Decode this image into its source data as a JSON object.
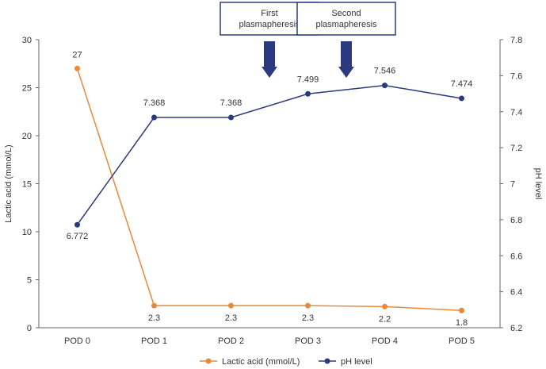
{
  "chart_data": {
    "type": "line",
    "categories": [
      "POD 0",
      "POD 1",
      "POD 2",
      "POD 3",
      "POD 4",
      "POD 5"
    ],
    "series": [
      {
        "name": "Lactic acid (mmol/L)",
        "axis": "left",
        "color": "#E8893A",
        "values": [
          27,
          2.3,
          2.3,
          2.3,
          2.2,
          1.8
        ],
        "labels": [
          "27",
          "2.3",
          "2.3",
          "2.3",
          "2.2",
          "1.8"
        ]
      },
      {
        "name": "pH level",
        "axis": "right",
        "color": "#2B3A7E",
        "values": [
          6.772,
          7.368,
          7.368,
          7.499,
          7.546,
          7.474
        ],
        "labels": [
          "6.772",
          "7.368",
          "7.368",
          "7.499",
          "7.546",
          "7.474"
        ]
      }
    ],
    "y_left": {
      "label": "Lactic acid (mmol/L)",
      "range": [
        0,
        30
      ],
      "ticks": [
        0,
        5,
        10,
        15,
        20,
        25,
        30
      ],
      "tick_labels": [
        "0",
        "5",
        "10",
        "15",
        "20",
        "25",
        "30"
      ]
    },
    "y_right": {
      "label": "pH level",
      "range": [
        6.2,
        7.8
      ],
      "ticks": [
        6.2,
        6.4,
        6.6,
        6.8,
        7.0,
        7.2,
        7.4,
        7.6,
        7.8
      ],
      "tick_labels": [
        "6.2",
        "6.4",
        "6.6",
        "6.8",
        "7",
        "7.2",
        "7.4",
        "7.6",
        "7.8"
      ]
    },
    "annotations": [
      {
        "text_lines": [
          "First",
          "plasmapheresis"
        ],
        "between": [
          "POD 2",
          "POD 3"
        ]
      },
      {
        "text_lines": [
          "Second",
          "plasmapheresis"
        ],
        "between": [
          "POD 3",
          "POD 4"
        ]
      }
    ],
    "arrow_color": "#2B3A7E",
    "grid": false,
    "legend_position": "bottom-center"
  }
}
